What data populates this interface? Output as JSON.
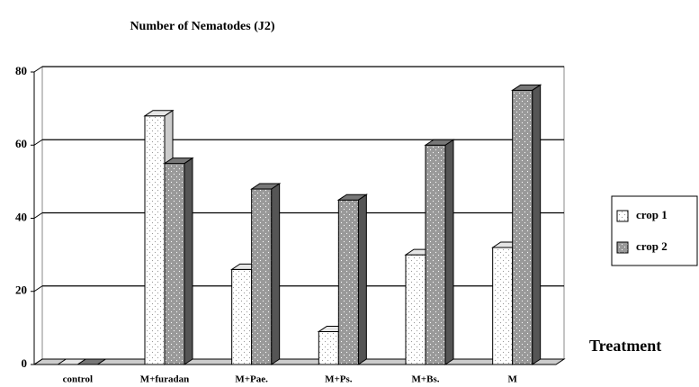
{
  "chart_data": {
    "type": "bar3d",
    "title": "Number of Nematodes (J2)",
    "x_label": "Treatment",
    "categories": [
      "control",
      "M+furadan",
      "M+Pae.",
      "M+Ps.",
      "M+Bs.",
      "M"
    ],
    "series": [
      {
        "name": "crop 1",
        "color": "#ffffff",
        "values": [
          0,
          68,
          26,
          9,
          30,
          32
        ]
      },
      {
        "name": "crop 2",
        "color": "#999999",
        "values": [
          0,
          55,
          48,
          45,
          60,
          75
        ]
      }
    ],
    "ylim": [
      0,
      80
    ],
    "yticks": [
      0,
      20,
      40,
      60,
      80
    ],
    "grid": true,
    "legend": "right"
  }
}
